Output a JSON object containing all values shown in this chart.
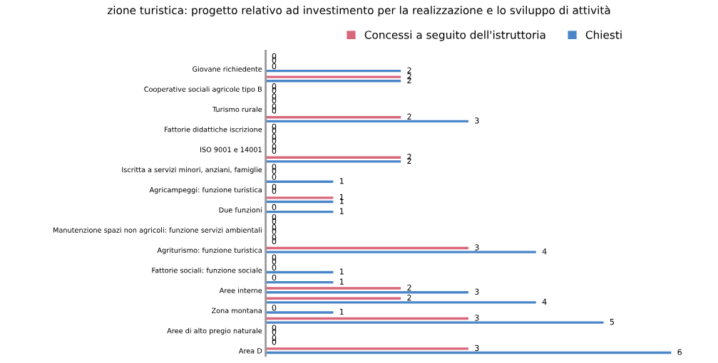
{
  "chart_data": {
    "type": "bar",
    "orientation": "horizontal",
    "title": "zione turistica: progetto relativo ad investimento per la realizzazione e lo sviluppo di attività",
    "categories": [
      null,
      "Giovane richiedente",
      null,
      "Cooperative sociali agricole tipo B",
      null,
      "Turismo rurale",
      null,
      "Fattorie didattiche iscrizione",
      null,
      "ISO 9001 e 14001",
      null,
      "Iscritta a servizi minori, anziani, famiglie",
      null,
      "Agricampeggi: funzione turistica",
      null,
      "Due funzioni",
      null,
      "Manutenzione spazi non agricoli: funzione servizi ambientali",
      null,
      "Agriturismo: funzione turistica",
      null,
      "Fattorie sociali: funzione sociale",
      null,
      "Aree interne",
      null,
      "Zona montana",
      null,
      "Aree di alto pregio naturale",
      null,
      "Area D"
    ],
    "series": [
      {
        "name": "Concessi a seguito dell'istruttoria",
        "color": "#d9677b",
        "values": [
          0,
          0,
          2,
          0,
          0,
          0,
          2,
          0,
          0,
          0,
          2,
          0,
          0,
          0,
          1,
          0,
          0,
          0,
          0,
          3,
          0,
          0,
          0,
          2,
          2,
          0,
          3,
          0,
          0,
          3
        ]
      },
      {
        "name": "Chiesti",
        "color": "#4a86c8",
        "values": [
          0,
          2,
          2,
          0,
          0,
          0,
          3,
          0,
          0,
          0,
          2,
          0,
          1,
          0,
          1,
          1,
          0,
          0,
          0,
          4,
          0,
          1,
          1,
          3,
          4,
          1,
          5,
          0,
          0,
          6
        ]
      }
    ],
    "data_labels": true,
    "legend": "top",
    "grid": false,
    "tick_labels": "y"
  }
}
